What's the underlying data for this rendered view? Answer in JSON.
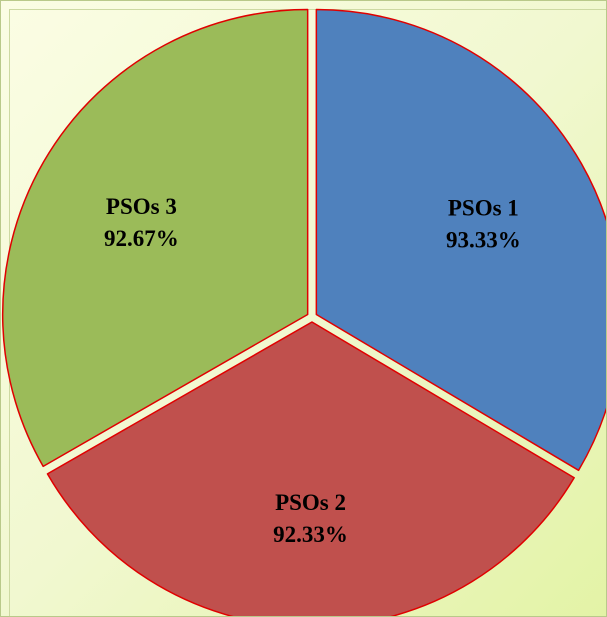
{
  "chart_data": {
    "type": "pie",
    "categories": [
      "PSOs 1",
      "PSOs 2",
      "PSOs 3"
    ],
    "values": [
      93.33,
      92.33,
      92.67
    ],
    "value_labels": [
      "93.33%",
      "92.33%",
      "92.67%"
    ],
    "colors": [
      "#4f81bd",
      "#c0504d",
      "#9bbb59"
    ],
    "edge_color": "#e00000",
    "exploded": true,
    "legend": false
  }
}
